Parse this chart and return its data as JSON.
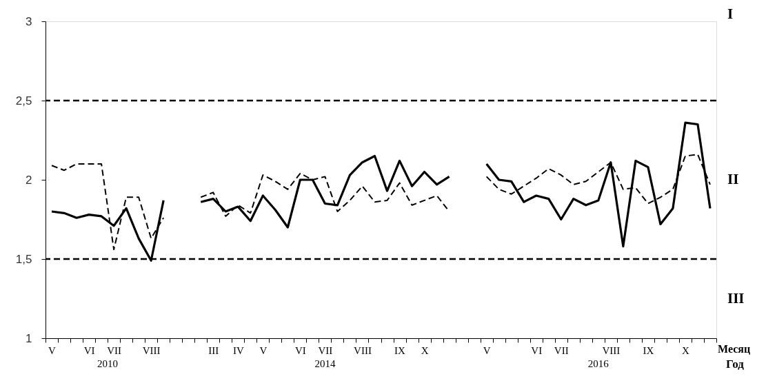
{
  "chart_data": {
    "type": "line",
    "categories": [
      "V",
      null,
      null,
      "VI",
      null,
      "VII",
      null,
      null,
      "VIII",
      null,
      null,
      null,
      null,
      "III",
      null,
      "IV",
      null,
      "V",
      null,
      null,
      "VI",
      null,
      "VII",
      null,
      null,
      "VIII",
      null,
      null,
      "IX",
      null,
      "X",
      null,
      null,
      null,
      null,
      "V",
      null,
      null,
      null,
      "VI",
      null,
      "VII",
      null,
      null,
      null,
      "VIII",
      null,
      null,
      "IX",
      null,
      null,
      "X",
      null,
      null
    ],
    "series": [
      {
        "color": "#000000",
        "line_style": "solid",
        "values": [
          1.8,
          1.79,
          1.76,
          1.78,
          1.77,
          1.71,
          1.82,
          1.63,
          1.49,
          1.87,
          null,
          null,
          1.86,
          1.88,
          1.8,
          1.83,
          1.74,
          1.9,
          1.81,
          1.7,
          2.0,
          2.0,
          1.85,
          1.84,
          2.03,
          2.11,
          2.15,
          1.93,
          2.12,
          1.96,
          2.05,
          1.97,
          2.02,
          null,
          null,
          2.1,
          2.0,
          1.99,
          1.86,
          1.9,
          1.88,
          1.75,
          1.88,
          1.84,
          1.87,
          2.11,
          1.58,
          2.12,
          2.08,
          1.72,
          1.82,
          2.36,
          2.35,
          1.82
        ]
      },
      {
        "color": "#000000",
        "line_style": "dashed",
        "values": [
          2.09,
          2.06,
          2.1,
          2.1,
          2.1,
          1.56,
          1.89,
          1.89,
          1.63,
          1.76,
          null,
          null,
          1.89,
          1.92,
          1.77,
          1.84,
          1.79,
          2.03,
          1.99,
          1.94,
          2.04,
          2.0,
          2.02,
          1.8,
          1.87,
          1.96,
          1.86,
          1.87,
          1.98,
          1.84,
          1.87,
          1.9,
          1.8,
          null,
          null,
          2.02,
          1.94,
          1.91,
          1.96,
          2.01,
          2.07,
          2.03,
          1.97,
          1.99,
          2.05,
          2.11,
          1.94,
          1.95,
          1.85,
          1.89,
          1.94,
          2.15,
          2.16,
          1.97
        ]
      }
    ],
    "xlabel": "Месяц",
    "ylim": [
      1,
      3
    ],
    "yticks": [
      1,
      {
        "value": 1.5,
        "label": "1,5"
      },
      2,
      {
        "value": 2.5,
        "label": "2,5"
      },
      3
    ],
    "ref_lines": [
      {
        "axis": "y",
        "value": 2.5,
        "color": "#000000",
        "line_style": "dashed"
      },
      {
        "axis": "y",
        "value": 1.5,
        "color": "#000000",
        "line_style": "dashed"
      }
    ],
    "annotations": [
      "I",
      "II",
      "III",
      "2010",
      "2014",
      "2016",
      "Год"
    ],
    "grid": false,
    "marker": "none"
  }
}
